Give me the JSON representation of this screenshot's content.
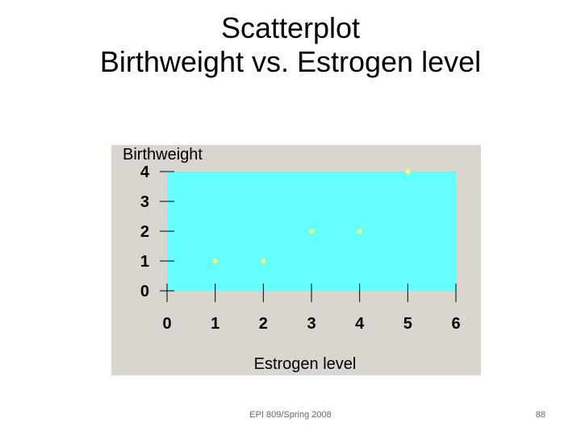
{
  "slide": {
    "title_line1": "Scatterplot",
    "title_line2": "Birthweight vs. Estrogen level",
    "footer": "EPI 809/Spring 2008",
    "page_number": "88"
  },
  "chart_data": {
    "type": "scatter",
    "title": "",
    "xlabel": "Estrogen level",
    "ylabel": "Birthweight",
    "xlim": [
      0,
      6
    ],
    "ylim": [
      0,
      4
    ],
    "xticks": [
      0,
      1,
      2,
      3,
      4,
      5,
      6
    ],
    "yticks": [
      0,
      1,
      2,
      3,
      4
    ],
    "x": [
      1,
      2,
      3,
      4,
      5
    ],
    "y": [
      1,
      1,
      2,
      2,
      4
    ],
    "grid": false,
    "plot_background": "#66ffff",
    "panel_background": "#d9d5cf",
    "point_color": "#ffff66"
  }
}
